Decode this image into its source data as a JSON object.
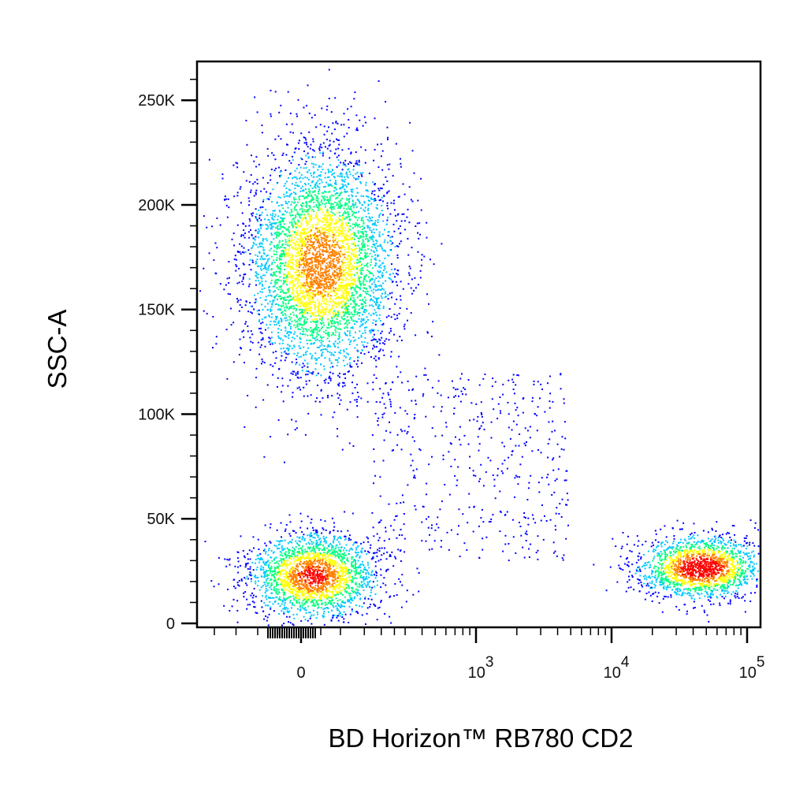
{
  "chart_data": {
    "type": "scatter",
    "title": "",
    "xlabel": "BD Horizon™ RB780 CD2",
    "ylabel": "SSC-A",
    "x_scale": "biexponential",
    "y_scale": "linear",
    "ylim": [
      0,
      262144
    ],
    "y_ticks": [
      {
        "value": 0,
        "label": "0"
      },
      {
        "value": 50000,
        "label": "50K"
      },
      {
        "value": 100000,
        "label": "100K"
      },
      {
        "value": 150000,
        "label": "150K"
      },
      {
        "value": 200000,
        "label": "200K"
      },
      {
        "value": 250000,
        "label": "250K"
      }
    ],
    "x_ticks": [
      {
        "value": 0,
        "base": "0",
        "exp": ""
      },
      {
        "value": 1000,
        "base": "10",
        "exp": "3"
      },
      {
        "value": 10000,
        "base": "10",
        "exp": "4"
      },
      {
        "value": 100000,
        "base": "10",
        "exp": "5"
      }
    ],
    "grid": false,
    "legend": "none",
    "colormap": [
      "#0000ff",
      "#00c8ff",
      "#00ff80",
      "#ffff00",
      "#ff8000",
      "#ff0000"
    ],
    "populations": [
      {
        "description": "CD2-negative high-SSC cluster",
        "x_center": 50,
        "ssc_center": 172000,
        "event_fraction": 0.5,
        "peak_density": "green-yellow"
      },
      {
        "description": "CD2-negative low-SSC cluster",
        "x_center": 30,
        "ssc_center": 23000,
        "event_fraction": 0.25,
        "peak_density": "yellow"
      },
      {
        "description": "CD2-positive low-SSC cluster",
        "x_center": 45000,
        "ssc_center": 27000,
        "event_fraction": 0.2,
        "peak_density": "red"
      },
      {
        "description": "scattered intermediate events",
        "x_center": 600,
        "ssc_center": 90000,
        "event_fraction": 0.05,
        "peak_density": "blue"
      }
    ]
  }
}
